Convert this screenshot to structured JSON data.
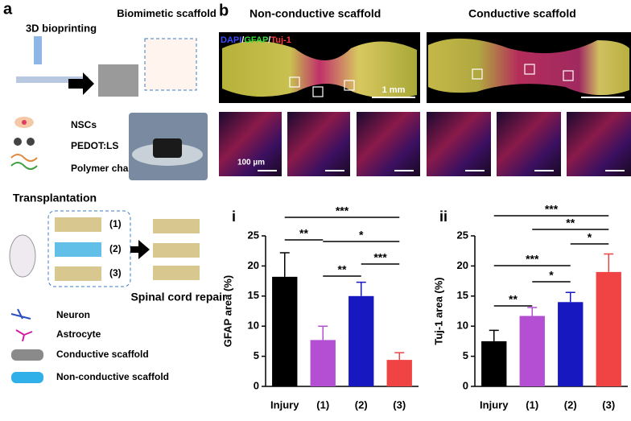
{
  "panel_a": {
    "label": "a",
    "bioprinting": "3D bioprinting",
    "scaffold": "Biomimetic scaffold",
    "nscs": "NSCs",
    "pedot": "PEDOT:LS",
    "polymer": "Polymer chain",
    "transplantation": "Transplantation",
    "groups": [
      "(1)",
      "(2)",
      "(3)"
    ],
    "repair": "Spinal cord repair",
    "legend": [
      "Neuron",
      "Astrocyte",
      "Conductive scaffold",
      "Non-conductive scaffold"
    ]
  },
  "panel_b": {
    "label": "b",
    "left_title": "Non-conductive scaffold",
    "right_title": "Conductive scaffold",
    "stains": [
      "DAPI",
      "GFAP",
      "Tuj-1"
    ],
    "separator": "/",
    "scale_large": "1 mm",
    "scale_small": "100 µm"
  },
  "chart_data": [
    {
      "type": "bar",
      "panel": "i",
      "ylabel": "GFAP area (%)",
      "categories": [
        "Injury",
        "(1)",
        "(2)",
        "(3)"
      ],
      "values": [
        18.2,
        7.7,
        15.0,
        4.4
      ],
      "errors": [
        4.0,
        2.3,
        2.3,
        1.2
      ],
      "colors": [
        "#000000",
        "#b44fd4",
        "#1818c0",
        "#f04444"
      ],
      "ylim": [
        0,
        25
      ],
      "yticks": [
        0,
        5,
        10,
        15,
        20,
        25
      ],
      "significance": [
        {
          "from": "Injury",
          "to": "(3)",
          "label": "***"
        },
        {
          "from": "Injury",
          "to": "(1)",
          "label": "**"
        },
        {
          "from": "(1)",
          "to": "(3)",
          "label": "*"
        },
        {
          "from": "(1)",
          "to": "(2)",
          "label": "**"
        },
        {
          "from": "(2)",
          "to": "(3)",
          "label": "***"
        }
      ]
    },
    {
      "type": "bar",
      "panel": "ii",
      "ylabel": "Tuj-1 area (%)",
      "categories": [
        "Injury",
        "(1)",
        "(2)",
        "(3)"
      ],
      "values": [
        7.5,
        11.7,
        14.0,
        19.0
      ],
      "errors": [
        1.8,
        1.4,
        1.6,
        3.0
      ],
      "colors": [
        "#000000",
        "#b44fd4",
        "#1818c0",
        "#f04444"
      ],
      "ylim": [
        0,
        25
      ],
      "yticks": [
        0,
        5,
        10,
        15,
        20,
        25
      ],
      "significance": [
        {
          "from": "Injury",
          "to": "(3)",
          "label": "***"
        },
        {
          "from": "(1)",
          "to": "(3)",
          "label": "**"
        },
        {
          "from": "(2)",
          "to": "(3)",
          "label": "*"
        },
        {
          "from": "Injury",
          "to": "(2)",
          "label": "***"
        },
        {
          "from": "(1)",
          "to": "(2)",
          "label": "*"
        },
        {
          "from": "Injury",
          "to": "(1)",
          "label": "**"
        }
      ]
    }
  ]
}
